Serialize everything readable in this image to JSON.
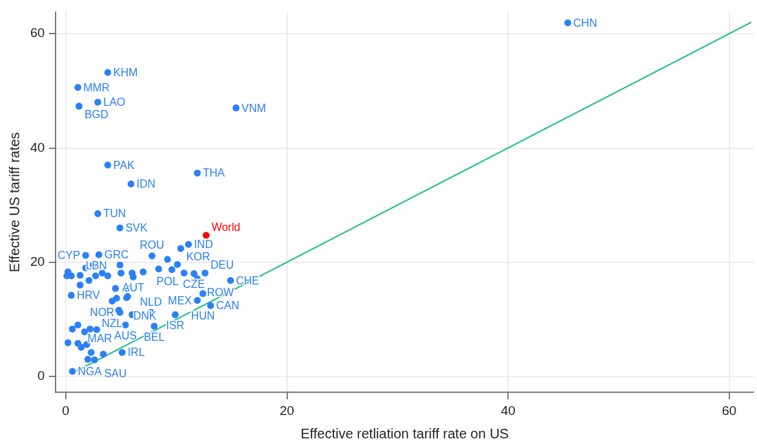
{
  "chart_data": {
    "type": "scatter",
    "xlabel": "Effective retliation tariff rate on US",
    "ylabel": "Effective US tariff rates",
    "xlim": [
      -0.9,
      62.2
    ],
    "ylim": [
      -2.8,
      63.8
    ],
    "xticks": [
      0,
      20,
      40,
      60
    ],
    "yticks": [
      0,
      20,
      40,
      60
    ],
    "grid": true,
    "legend": false,
    "marker": "circle",
    "series": [
      {
        "color": "#2b80f5",
        "x": [
          45.4,
          3.8,
          1.1,
          2.9,
          1.2,
          15.4,
          3.8,
          11.9,
          5.9,
          2.9,
          4.9,
          11.1,
          10.4,
          1.8,
          3.0,
          7.8,
          9.2,
          10.1,
          12.6,
          11.9,
          14.9,
          12.4,
          11.9,
          13.1,
          9.9,
          8.0,
          5.4,
          7.7,
          4.9,
          6.1,
          0.5,
          1.3,
          4.2,
          5.6,
          1.1,
          0.6,
          5.1,
          2.6,
          0.2,
          0.1,
          0.5,
          1.3,
          1.8,
          2.5,
          3.3,
          3.8,
          5.0,
          4.9,
          6.0,
          7.0,
          8.4,
          9.6,
          10.7,
          11.6,
          2.1,
          2.7,
          4.5,
          5.6,
          5.5,
          4.6,
          4.8,
          6.0,
          0.6,
          1.7,
          2.2,
          2.8,
          0.2,
          1.1,
          1.4,
          1.9,
          2.3,
          3.4,
          2.0
        ],
        "values": [
          61.9,
          53.2,
          50.6,
          48.0,
          47.3,
          47.0,
          37.0,
          35.6,
          33.7,
          28.5,
          26.0,
          23.1,
          22.4,
          21.2,
          21.3,
          21.1,
          20.5,
          19.6,
          18.1,
          17.1,
          16.8,
          14.5,
          13.3,
          12.4,
          10.8,
          8.8,
          9.0,
          11.2,
          11.2,
          17.4,
          14.2,
          16.0,
          13.2,
          14.0,
          9.0,
          0.9,
          4.2,
          2.9,
          18.3,
          17.6,
          17.6,
          17.7,
          19.0,
          19.5,
          18.1,
          17.6,
          18.1,
          19.5,
          18.1,
          18.3,
          18.8,
          18.7,
          18.1,
          18.0,
          16.8,
          17.6,
          15.4,
          15.4,
          13.8,
          13.7,
          11.6,
          10.8,
          8.3,
          7.8,
          8.3,
          8.2,
          5.9,
          5.8,
          5.1,
          5.6,
          4.2,
          3.9,
          3.0
        ],
        "value_labels": [
          "CHN",
          "KHM",
          "MMR",
          "LAO",
          "BGD",
          "VNM",
          "PAK",
          "THA",
          "IDN",
          "TUN",
          "SVK",
          "IND",
          "KOR",
          "CYP",
          "GRC",
          "ROU",
          "POL",
          "CZE",
          "DEU",
          "ROW",
          "CHE",
          "HUN",
          "MEX",
          "CAN",
          "ISR",
          "BEL",
          "AUS",
          "NLD",
          "NOR",
          "AUT",
          "HRV",
          "LBN",
          "NZL",
          "DNK",
          "MAR",
          "NGA",
          "IRL",
          "SAU",
          null,
          null,
          null,
          null,
          null,
          null,
          null,
          null,
          null,
          null,
          null,
          null,
          null,
          null,
          null,
          null,
          null,
          null,
          null,
          null,
          null,
          null,
          null,
          null,
          null,
          null,
          null,
          null,
          null,
          null,
          null,
          null,
          null,
          null,
          null
        ]
      },
      {
        "color": "#ff0000",
        "x": [
          12.7
        ],
        "values": [
          24.7
        ],
        "value_labels": [
          "World"
        ]
      },
      {
        "type": "line",
        "color": "#1fbf80",
        "x": [
          1,
          62
        ],
        "values": [
          1,
          62
        ],
        "marker": "none"
      }
    ]
  }
}
